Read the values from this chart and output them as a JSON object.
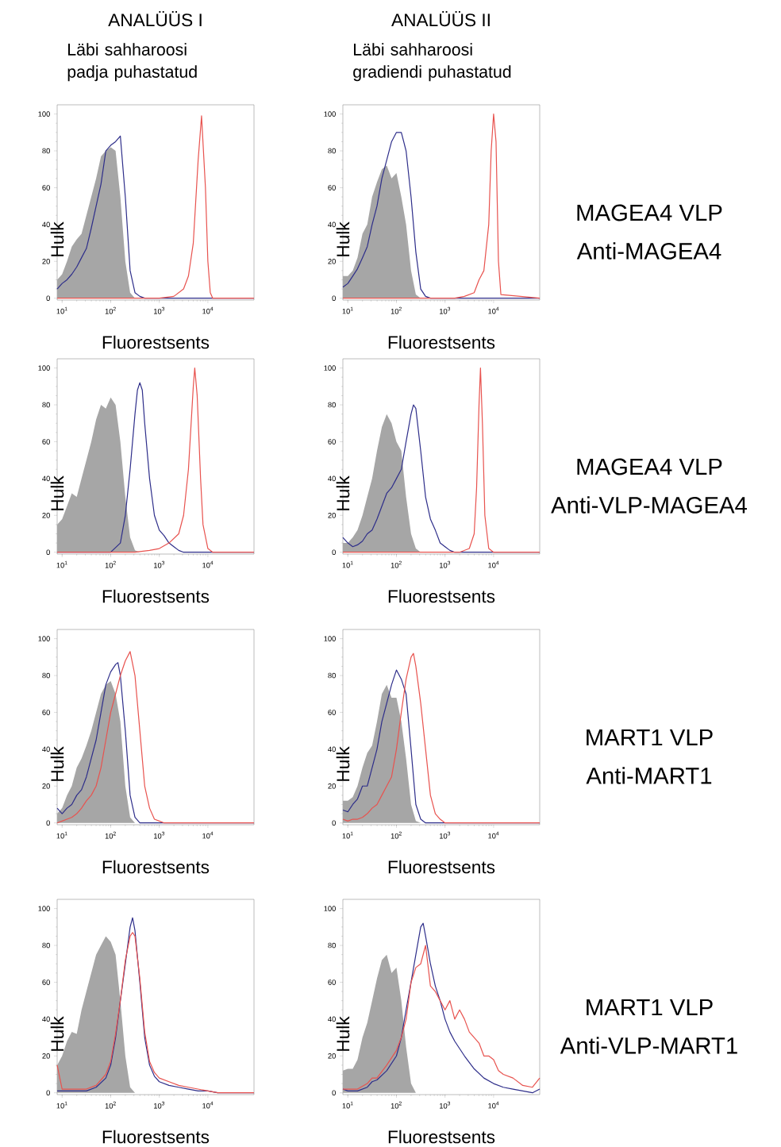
{
  "chart_data": [
    {
      "type": "line",
      "title": "ANALÜÜS I",
      "subtitle": "Läbi sahharoosi padja puhastatud",
      "xlabel": "Fluorestsents",
      "ylabel": "Hulk",
      "log": "x",
      "xlim": [
        7.9,
        89000
      ],
      "ylim": [
        -1,
        105
      ],
      "xticks": [
        {
          "value": 10,
          "label": "10$^{1}$"
        },
        {
          "value": 100,
          "label": "10$^{2}$"
        },
        {
          "value": 1000,
          "label": "10$^{3}$"
        },
        {
          "value": 10000,
          "label": "10$^{4}$"
        }
      ],
      "yticks": [
        0,
        20,
        40,
        60,
        80,
        100
      ],
      "series": [
        {
          "type": "area",
          "color": "#a6a6a6",
          "x": [
            7.9,
            10,
            12.6,
            15.8,
            20,
            25.1,
            31.6,
            39.8,
            50.1,
            63.1,
            79.4,
            100,
            126,
            158,
            200,
            251,
            316,
            89000
          ],
          "values": [
            10,
            13,
            20,
            28,
            32,
            35,
            45,
            55,
            65,
            77,
            80,
            82,
            80,
            55,
            20,
            3,
            0,
            0
          ]
        },
        {
          "color": "#2e2e8a",
          "x": [
            7.9,
            10,
            12.6,
            15.8,
            20,
            25.1,
            31.6,
            39.8,
            50.1,
            63.1,
            79.4,
            100,
            126,
            158,
            200,
            251,
            316,
            398,
            501,
            89000
          ],
          "values": [
            5,
            8,
            10,
            13,
            17,
            22,
            27,
            38,
            50,
            62,
            80,
            83,
            85,
            88,
            55,
            15,
            3,
            1,
            0,
            0
          ]
        },
        {
          "color": "#e8534f",
          "x": [
            7.9,
            1000,
            1995,
            3162,
            3981,
            5012,
            6310,
            7413,
            8913,
            10000,
            11220,
            12589,
            89000
          ],
          "values": [
            0,
            0,
            1,
            5,
            12,
            30,
            75,
            99,
            60,
            20,
            3,
            0,
            0
          ]
        }
      ]
    },
    {
      "type": "line",
      "title": "ANALÜÜS II",
      "subtitle": "Läbi sahharoosi gradiendi puhastatud",
      "xlabel": "Fluorestsents",
      "ylabel": "Hulk",
      "annotations": [
        "MAGEA4 VLP",
        "Anti-MAGEA4"
      ],
      "log": "x",
      "xlim": [
        7.9,
        89000
      ],
      "ylim": [
        -1,
        105
      ],
      "xticks": [
        {
          "value": 10,
          "label": "10$^{1}$"
        },
        {
          "value": 100,
          "label": "10$^{2}$"
        },
        {
          "value": 1000,
          "label": "10$^{3}$"
        },
        {
          "value": 10000,
          "label": "10$^{4}$"
        }
      ],
      "yticks": [
        0,
        20,
        40,
        60,
        80,
        100
      ],
      "series": [
        {
          "type": "area",
          "color": "#a6a6a6",
          "x": [
            7.9,
            10,
            12.6,
            15.8,
            20,
            25.1,
            31.6,
            39.8,
            50.1,
            63.1,
            79.4,
            100,
            126,
            158,
            200,
            251,
            316,
            89000
          ],
          "values": [
            12,
            12,
            15,
            22,
            35,
            40,
            55,
            63,
            70,
            72,
            65,
            68,
            55,
            40,
            15,
            2,
            0,
            0
          ]
        },
        {
          "color": "#2e2e8a",
          "x": [
            7.9,
            10,
            12.6,
            15.8,
            20,
            25.1,
            31.6,
            39.8,
            50.1,
            63.1,
            79.4,
            100,
            126,
            158,
            200,
            251,
            316,
            398,
            501,
            89000
          ],
          "values": [
            6,
            8,
            12,
            16,
            22,
            28,
            40,
            50,
            65,
            75,
            85,
            90,
            90,
            80,
            55,
            25,
            5,
            1,
            0,
            0
          ]
        },
        {
          "color": "#e8534f",
          "x": [
            7.9,
            1585,
            2512,
            3981,
            5012,
            6310,
            7943,
            8913,
            10000,
            11220,
            12589,
            14125,
            89000
          ],
          "values": [
            0,
            0,
            1,
            3,
            10,
            15,
            40,
            80,
            100,
            85,
            20,
            2,
            0
          ]
        }
      ]
    },
    {
      "type": "line",
      "xlabel": "Fluorestsents",
      "ylabel": "Hulk",
      "log": "x",
      "xlim": [
        7.9,
        89000
      ],
      "ylim": [
        -1,
        105
      ],
      "xticks": [
        {
          "value": 10,
          "label": "10$^{1}$"
        },
        {
          "value": 100,
          "label": "10$^{2}$"
        },
        {
          "value": 1000,
          "label": "10$^{3}$"
        },
        {
          "value": 10000,
          "label": "10$^{4}$"
        }
      ],
      "yticks": [
        0,
        20,
        40,
        60,
        80,
        100
      ],
      "series": [
        {
          "type": "area",
          "color": "#a6a6a6",
          "x": [
            7.9,
            10,
            12.6,
            15.8,
            20,
            25.1,
            31.6,
            39.8,
            50.1,
            63.1,
            79.4,
            100,
            126,
            158,
            200,
            251,
            316,
            398,
            89000
          ],
          "values": [
            15,
            18,
            25,
            32,
            30,
            40,
            50,
            60,
            72,
            80,
            78,
            84,
            80,
            60,
            30,
            8,
            1,
            0,
            0
          ]
        },
        {
          "color": "#2e2e8a",
          "x": [
            7.9,
            100,
            158,
            200,
            251,
            316,
            355,
            398,
            447,
            501,
            631,
            794,
            1000,
            1259,
            1585,
            1995,
            2512,
            3162,
            89000
          ],
          "values": [
            0,
            0,
            5,
            20,
            45,
            75,
            88,
            92,
            88,
            70,
            40,
            20,
            12,
            9,
            5,
            3,
            1,
            0,
            0
          ]
        },
        {
          "color": "#e8534f",
          "x": [
            7.9,
            316,
            631,
            1000,
            1585,
            2512,
            3162,
            3981,
            5012,
            5370,
            6026,
            7079,
            7943,
            10000,
            12589,
            89000
          ],
          "values": [
            0,
            0,
            1,
            2,
            5,
            10,
            20,
            45,
            90,
            100,
            85,
            40,
            15,
            2,
            0,
            0
          ]
        }
      ]
    },
    {
      "type": "line",
      "xlabel": "Fluorestsents",
      "ylabel": "Hulk",
      "annotations": [
        "MAGEA4 VLP",
        "Anti-VLP-MAGEA4"
      ],
      "log": "x",
      "xlim": [
        7.9,
        89000
      ],
      "ylim": [
        -1,
        105
      ],
      "xticks": [
        {
          "value": 10,
          "label": "10$^{1}$"
        },
        {
          "value": 100,
          "label": "10$^{2}$"
        },
        {
          "value": 1000,
          "label": "10$^{3}$"
        },
        {
          "value": 10000,
          "label": "10$^{4}$"
        }
      ],
      "yticks": [
        0,
        20,
        40,
        60,
        80,
        100
      ],
      "series": [
        {
          "type": "area",
          "color": "#a6a6a6",
          "x": [
            7.9,
            10,
            12.6,
            15.8,
            20,
            25.1,
            31.6,
            39.8,
            50.1,
            63.1,
            79.4,
            100,
            126,
            158,
            200,
            251,
            316,
            89000
          ],
          "values": [
            5,
            5,
            8,
            12,
            20,
            30,
            40,
            55,
            68,
            75,
            70,
            60,
            55,
            30,
            10,
            2,
            0,
            0
          ]
        },
        {
          "color": "#2e2e8a",
          "x": [
            7.9,
            10,
            12.6,
            15.8,
            20,
            25.1,
            31.6,
            39.8,
            50.1,
            63.1,
            79.4,
            100,
            126,
            158,
            200,
            224,
            251,
            316,
            398,
            501,
            631,
            794,
            1000,
            1259,
            1585,
            89000
          ],
          "values": [
            8,
            5,
            3,
            4,
            6,
            10,
            12,
            18,
            25,
            32,
            35,
            40,
            45,
            60,
            75,
            80,
            78,
            55,
            30,
            18,
            12,
            5,
            3,
            1,
            0,
            0
          ]
        },
        {
          "color": "#e8534f",
          "x": [
            7.9,
            1995,
            3162,
            3981,
            4467,
            5012,
            5370,
            5888,
            6607,
            7943,
            10000,
            89000
          ],
          "values": [
            0,
            0,
            2,
            10,
            35,
            80,
            100,
            70,
            20,
            2,
            0,
            0
          ]
        }
      ]
    },
    {
      "type": "line",
      "xlabel": "Fluorestsents",
      "ylabel": "Hulk",
      "log": "x",
      "xlim": [
        7.9,
        89000
      ],
      "ylim": [
        -1,
        105
      ],
      "xticks": [
        {
          "value": 10,
          "label": "10$^{1}$"
        },
        {
          "value": 100,
          "label": "10$^{2}$"
        },
        {
          "value": 1000,
          "label": "10$^{3}$"
        },
        {
          "value": 10000,
          "label": "10$^{4}$"
        }
      ],
      "yticks": [
        0,
        20,
        40,
        60,
        80,
        100
      ],
      "series": [
        {
          "type": "area",
          "color": "#a6a6a6",
          "x": [
            7.9,
            10,
            12.6,
            15.8,
            20,
            25.1,
            31.6,
            39.8,
            50.1,
            63.1,
            79.4,
            100,
            126,
            158,
            200,
            251,
            316,
            89000
          ],
          "values": [
            5,
            8,
            15,
            20,
            30,
            35,
            42,
            50,
            60,
            70,
            75,
            77,
            70,
            55,
            20,
            3,
            0,
            0
          ]
        },
        {
          "color": "#2e2e8a",
          "x": [
            7.9,
            10,
            12.6,
            15.8,
            20,
            25.1,
            31.6,
            39.8,
            50.1,
            63.1,
            79.4,
            100,
            126,
            141,
            158,
            200,
            251,
            316,
            398,
            89000
          ],
          "values": [
            8,
            5,
            8,
            10,
            15,
            18,
            25,
            35,
            45,
            60,
            75,
            82,
            86,
            87,
            80,
            50,
            15,
            3,
            0,
            0
          ]
        },
        {
          "color": "#e8534f",
          "x": [
            7.9,
            10,
            12.6,
            15.8,
            20,
            25.1,
            31.6,
            39.8,
            50.1,
            63.1,
            79.4,
            100,
            126,
            158,
            200,
            251,
            316,
            398,
            501,
            631,
            794,
            1000,
            1259,
            89000
          ],
          "values": [
            0,
            1,
            2,
            3,
            5,
            8,
            12,
            15,
            20,
            30,
            45,
            60,
            70,
            80,
            88,
            93,
            80,
            50,
            20,
            8,
            2,
            1,
            0,
            0
          ]
        }
      ]
    },
    {
      "type": "line",
      "xlabel": "Fluorestsents",
      "ylabel": "Hulk",
      "annotations": [
        "MART1 VLP",
        "Anti-MART1"
      ],
      "log": "x",
      "xlim": [
        7.9,
        89000
      ],
      "ylim": [
        -1,
        105
      ],
      "xticks": [
        {
          "value": 10,
          "label": "10$^{1}$"
        },
        {
          "value": 100,
          "label": "10$^{2}$"
        },
        {
          "value": 1000,
          "label": "10$^{3}$"
        },
        {
          "value": 10000,
          "label": "10$^{4}$"
        }
      ],
      "yticks": [
        0,
        20,
        40,
        60,
        80,
        100
      ],
      "series": [
        {
          "type": "area",
          "color": "#a6a6a6",
          "x": [
            7.9,
            10,
            12.6,
            15.8,
            20,
            25.1,
            31.6,
            39.8,
            50.1,
            63.1,
            79.4,
            100,
            126,
            158,
            200,
            251,
            316,
            89000
          ],
          "values": [
            12,
            12,
            14,
            20,
            30,
            38,
            42,
            55,
            70,
            75,
            68,
            68,
            55,
            35,
            10,
            1,
            0,
            0
          ]
        },
        {
          "color": "#2e2e8a",
          "x": [
            7.9,
            10,
            12.6,
            15.8,
            20,
            25.1,
            31.6,
            39.8,
            50.1,
            63.1,
            79.4,
            100,
            126,
            158,
            200,
            251,
            316,
            398,
            89000
          ],
          "values": [
            7,
            6,
            10,
            13,
            20,
            20,
            30,
            40,
            55,
            65,
            75,
            83,
            78,
            70,
            40,
            10,
            2,
            0,
            0
          ]
        },
        {
          "color": "#e8534f",
          "x": [
            7.9,
            10,
            12.6,
            15.8,
            20,
            25.1,
            31.6,
            39.8,
            50.1,
            63.1,
            79.4,
            100,
            126,
            158,
            200,
            224,
            251,
            316,
            398,
            501,
            631,
            794,
            1000,
            89000
          ],
          "values": [
            2,
            1,
            2,
            2,
            3,
            5,
            8,
            10,
            15,
            20,
            25,
            40,
            60,
            78,
            90,
            92,
            85,
            65,
            40,
            15,
            5,
            2,
            0,
            0
          ]
        }
      ]
    },
    {
      "type": "line",
      "xlabel": "Fluorestsents",
      "ylabel": "Hulk",
      "log": "x",
      "xlim": [
        7.9,
        89000
      ],
      "ylim": [
        -1,
        105
      ],
      "xticks": [
        {
          "value": 10,
          "label": "10$^{1}$"
        },
        {
          "value": 100,
          "label": "10$^{2}$"
        },
        {
          "value": 1000,
          "label": "10$^{3}$"
        },
        {
          "value": 10000,
          "label": "10$^{4}$"
        }
      ],
      "yticks": [
        0,
        20,
        40,
        60,
        80,
        100
      ],
      "series": [
        {
          "type": "area",
          "color": "#a6a6a6",
          "x": [
            7.9,
            10,
            12.6,
            15.8,
            20,
            25.1,
            31.6,
            39.8,
            50.1,
            63.1,
            79.4,
            100,
            126,
            158,
            200,
            251,
            316,
            89000
          ],
          "values": [
            15,
            20,
            28,
            33,
            32,
            45,
            55,
            65,
            75,
            80,
            85,
            82,
            75,
            50,
            20,
            3,
            0,
            0
          ]
        },
        {
          "color": "#2e2e8a",
          "x": [
            7.9,
            10,
            31.6,
            50.1,
            79.4,
            100,
            126,
            158,
            200,
            251,
            282,
            316,
            398,
            501,
            631,
            794,
            1000,
            1585,
            2512,
            3981,
            6310,
            10000,
            15849,
            89000
          ],
          "values": [
            1,
            1,
            1,
            3,
            8,
            15,
            30,
            50,
            70,
            90,
            95,
            88,
            60,
            30,
            15,
            9,
            6,
            4,
            3,
            2,
            1,
            1,
            0,
            0
          ]
        },
        {
          "color": "#e8534f",
          "x": [
            7.9,
            10,
            31.6,
            50.1,
            79.4,
            100,
            126,
            158,
            200,
            251,
            282,
            316,
            398,
            501,
            631,
            794,
            1000,
            1585,
            2512,
            3981,
            6310,
            10000,
            15849,
            89000
          ],
          "values": [
            15,
            2,
            2,
            4,
            10,
            17,
            32,
            50,
            72,
            85,
            87,
            85,
            62,
            33,
            17,
            11,
            8,
            6,
            4,
            3,
            2,
            1,
            0,
            0
          ]
        }
      ]
    },
    {
      "type": "line",
      "xlabel": "Fluorestsents",
      "ylabel": "Hulk",
      "annotations": [
        "MART1 VLP",
        "Anti-VLP-MART1"
      ],
      "log": "x",
      "xlim": [
        7.9,
        89000
      ],
      "ylim": [
        -1,
        105
      ],
      "xticks": [
        {
          "value": 10,
          "label": "10$^{1}$"
        },
        {
          "value": 100,
          "label": "10$^{2}$"
        },
        {
          "value": 1000,
          "label": "10$^{3}$"
        },
        {
          "value": 10000,
          "label": "10$^{4}$"
        }
      ],
      "yticks": [
        0,
        20,
        40,
        60,
        80,
        100
      ],
      "series": [
        {
          "type": "area",
          "color": "#a6a6a6",
          "x": [
            7.9,
            10,
            12.6,
            15.8,
            20,
            25.1,
            31.6,
            39.8,
            50.1,
            63.1,
            79.4,
            100,
            126,
            158,
            200,
            251,
            89000
          ],
          "values": [
            12,
            13,
            13,
            18,
            30,
            38,
            50,
            62,
            72,
            75,
            65,
            68,
            50,
            25,
            5,
            0,
            0
          ]
        },
        {
          "color": "#2e2e8a",
          "x": [
            7.9,
            10,
            15.8,
            25.1,
            31.6,
            39.8,
            63.1,
            100,
            126,
            158,
            200,
            251,
            316,
            355,
            398,
            501,
            631,
            794,
            1000,
            1259,
            1585,
            2512,
            3981,
            6310,
            10000,
            15849,
            25119,
            39811,
            63096,
            89000
          ],
          "values": [
            2,
            1,
            1,
            3,
            6,
            7,
            12,
            20,
            30,
            45,
            60,
            75,
            90,
            92,
            85,
            70,
            58,
            50,
            40,
            33,
            28,
            20,
            13,
            8,
            5,
            3,
            2,
            1,
            0,
            2
          ]
        },
        {
          "color": "#e8534f",
          "x": [
            7.9,
            10,
            15.8,
            25.1,
            31.6,
            39.8,
            63.1,
            100,
            126,
            158,
            200,
            251,
            316,
            398,
            501,
            631,
            794,
            1000,
            1259,
            1585,
            1995,
            2512,
            3162,
            3981,
            5012,
            6310,
            7943,
            10000,
            12589,
            15849,
            25119,
            39811,
            63096,
            89000
          ],
          "values": [
            2,
            2,
            2,
            5,
            8,
            8,
            15,
            23,
            30,
            40,
            60,
            68,
            70,
            80,
            58,
            55,
            50,
            45,
            50,
            40,
            45,
            40,
            33,
            30,
            27,
            20,
            20,
            18,
            12,
            10,
            8,
            4,
            3,
            8
          ]
        }
      ]
    }
  ]
}
